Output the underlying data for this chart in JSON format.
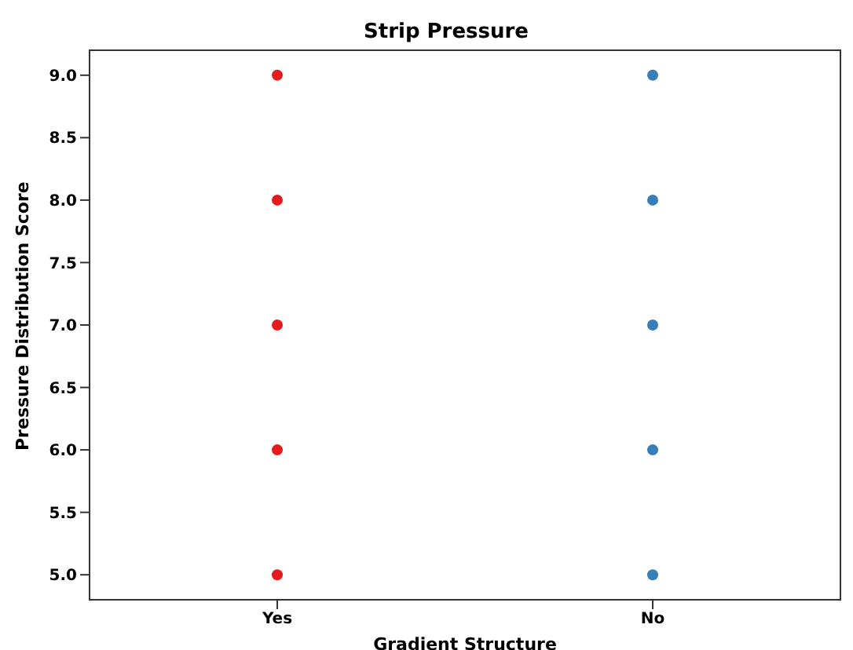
{
  "chart_data": {
    "type": "scatter",
    "title": "Strip Pressure",
    "xlabel": "Gradient Structure",
    "ylabel": "Pressure Distribution Score",
    "categories": [
      "Yes",
      "No"
    ],
    "series": [
      {
        "color": "#e41a1c",
        "x": [
          "Yes",
          "Yes",
          "Yes",
          "Yes",
          "Yes"
        ],
        "values": [
          5,
          6,
          7,
          8,
          9
        ]
      },
      {
        "color": "#377eb8",
        "x": [
          "No",
          "No",
          "No",
          "No",
          "No"
        ],
        "values": [
          5,
          6,
          7,
          8,
          9
        ]
      }
    ],
    "ylim": [
      4.8,
      9.2
    ],
    "yticks": [
      {
        "value": 5,
        "label": "5.0"
      },
      5.5,
      {
        "value": 6,
        "label": "6.0"
      },
      6.5,
      {
        "value": 7,
        "label": "7.0"
      },
      7.5,
      {
        "value": 8,
        "label": "8.0"
      },
      8.5,
      {
        "value": 9,
        "label": "9.0"
      }
    ],
    "grid": false,
    "legend": false,
    "marker": "circle"
  }
}
